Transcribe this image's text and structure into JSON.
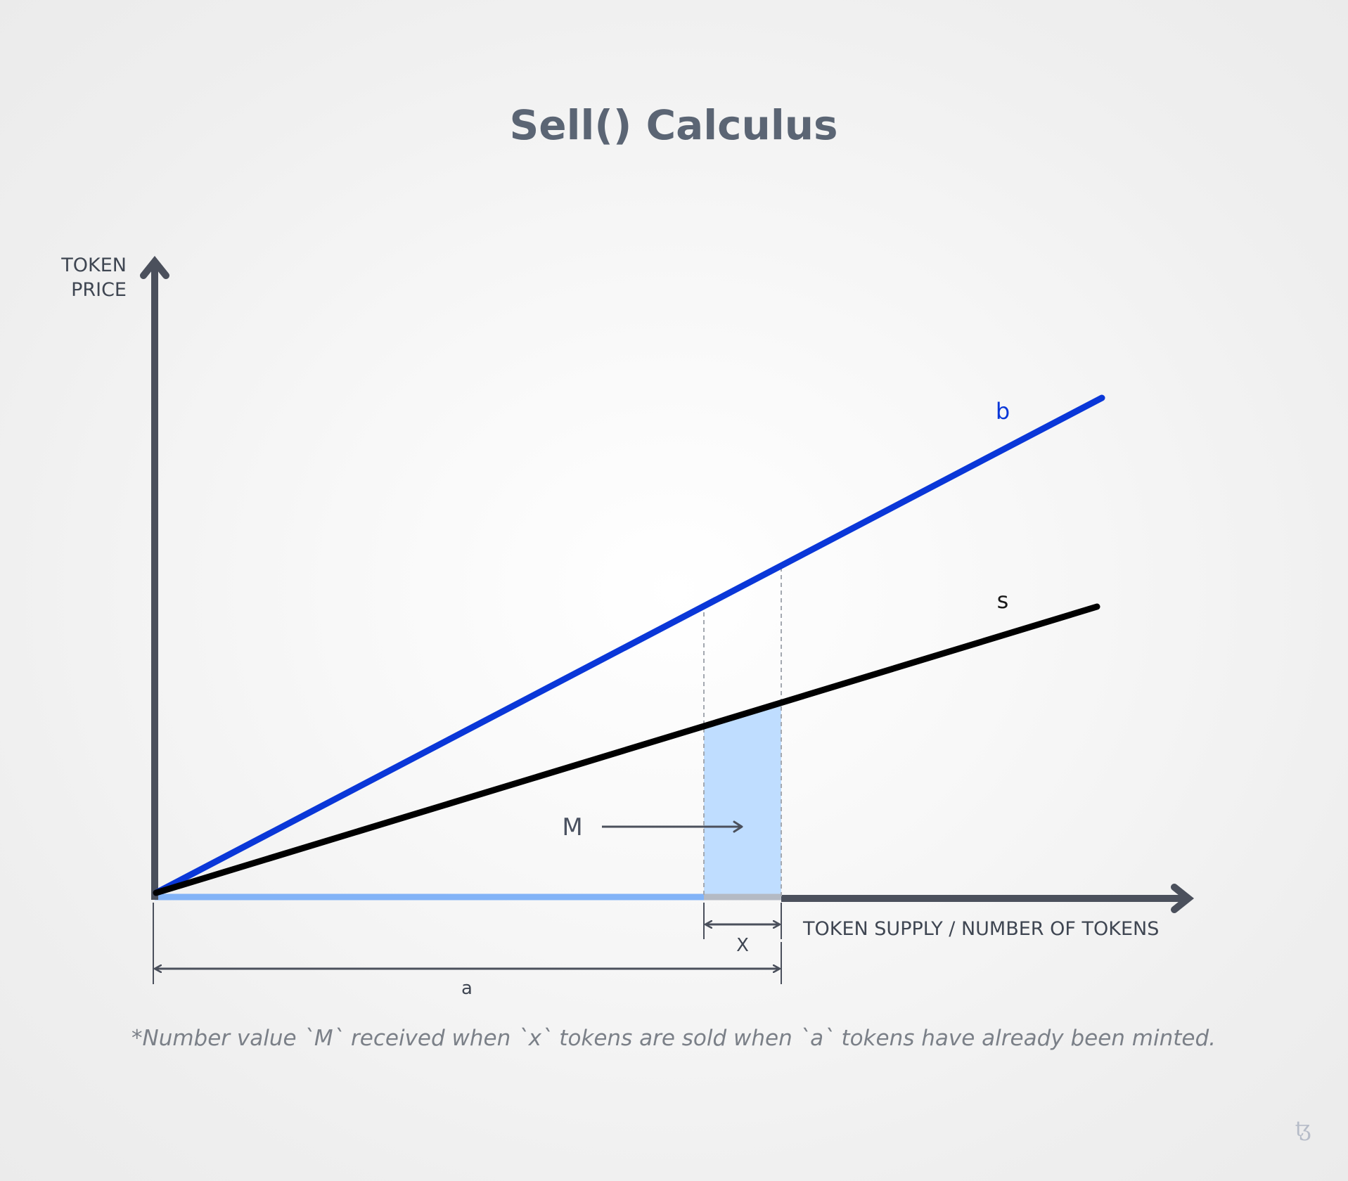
{
  "title": "Sell() Calculus",
  "y_axis_label": [
    "TOKEN",
    "PRICE"
  ],
  "x_axis_label": "TOKEN SUPPLY / NUMBER OF TOKENS",
  "lines": {
    "buy": {
      "label": "b",
      "color": "#0a37d8"
    },
    "sell": {
      "label": "s",
      "color": "#000000"
    }
  },
  "area_label": "M",
  "area_color": "#bfddff",
  "dimensions": {
    "x_label": "X",
    "a_label": "a"
  },
  "footnote": "*Number value `M` received when `x` tokens are sold when `a` tokens have already been minted.",
  "logo_glyph": "ꜩ",
  "colors": {
    "axis": "#4b505c",
    "minted_bar": "#82b3f7",
    "title": "#5b6574"
  }
}
